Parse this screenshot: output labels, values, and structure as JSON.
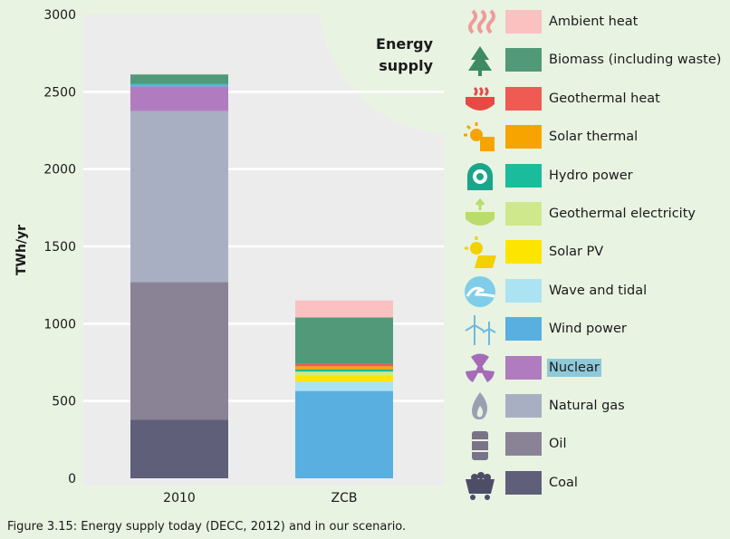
{
  "caption": "Figure 3.15: Energy supply today (DECC, 2012) and in our scenario.",
  "chart_data": {
    "type": "bar",
    "stacked": true,
    "title": "Energy supply",
    "xlabel": "",
    "ylabel": "TWh/yr",
    "ylim": [
      0,
      3000
    ],
    "yticks": [
      0,
      500,
      1000,
      1500,
      2000,
      2500,
      3000
    ],
    "categories": [
      "2010",
      "ZCB"
    ],
    "legend_position": "right",
    "series": [
      {
        "name": "Coal",
        "color": "#5f5f7a",
        "icon": "coal-cart-icon",
        "values": [
          380,
          0
        ]
      },
      {
        "name": "Oil",
        "color": "#8a8396",
        "icon": "oil-barrel-icon",
        "values": [
          890,
          0
        ]
      },
      {
        "name": "Natural gas",
        "color": "#a9afc3",
        "icon": "gas-flame-icon",
        "values": [
          1105,
          0
        ]
      },
      {
        "name": "Nuclear",
        "color": "#b07cbf",
        "icon": "radiation-icon",
        "values": [
          160,
          0
        ]
      },
      {
        "name": "Wind power",
        "color": "#5aafe1",
        "icon": "wind-turbine-icon",
        "values": [
          12,
          565
        ]
      },
      {
        "name": "Wave and tidal",
        "color": "#ace3f2",
        "icon": "wave-icon",
        "values": [
          0,
          60
        ]
      },
      {
        "name": "Solar PV",
        "color": "#fde500",
        "icon": "solar-panel-icon",
        "values": [
          0,
          40
        ]
      },
      {
        "name": "Geothermal electricity",
        "color": "#cfe88c",
        "icon": "geothermal-electricity-icon",
        "values": [
          0,
          25
        ]
      },
      {
        "name": "Hydro power",
        "color": "#1abc9c",
        "icon": "hydro-dam-icon",
        "values": [
          5,
          15
        ]
      },
      {
        "name": "Solar thermal",
        "color": "#f8a400",
        "icon": "solar-thermal-icon",
        "values": [
          0,
          20
        ]
      },
      {
        "name": "Geothermal heat",
        "color": "#ef5a53",
        "icon": "geothermal-heat-icon",
        "values": [
          0,
          15
        ]
      },
      {
        "name": "Biomass (including waste)",
        "color": "#52997a",
        "icon": "tree-icon",
        "values": [
          60,
          300
        ]
      },
      {
        "name": "Ambient heat",
        "color": "#fbc1c1",
        "icon": "heat-waves-icon",
        "values": [
          0,
          110
        ]
      }
    ]
  },
  "highlight_legend": "Nuclear"
}
